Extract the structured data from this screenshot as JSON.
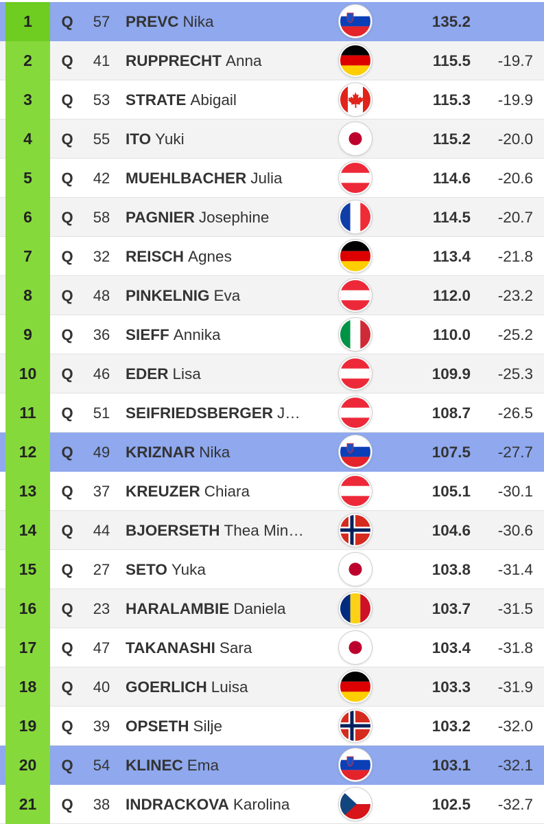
{
  "results": [
    {
      "rank": "1",
      "status": "Q",
      "bib": "57",
      "last": "PREVC",
      "first": "Nika",
      "country": "SLO",
      "score": "135.2",
      "diff": "",
      "highlight": true
    },
    {
      "rank": "2",
      "status": "Q",
      "bib": "41",
      "last": "RUPPRECHT",
      "first": "Anna",
      "country": "GER",
      "score": "115.5",
      "diff": "-19.7",
      "highlight": false
    },
    {
      "rank": "3",
      "status": "Q",
      "bib": "53",
      "last": "STRATE",
      "first": "Abigail",
      "country": "CAN",
      "score": "115.3",
      "diff": "-19.9",
      "highlight": false
    },
    {
      "rank": "4",
      "status": "Q",
      "bib": "55",
      "last": "ITO",
      "first": "Yuki",
      "country": "JPN",
      "score": "115.2",
      "diff": "-20.0",
      "highlight": false
    },
    {
      "rank": "5",
      "status": "Q",
      "bib": "42",
      "last": "MUEHLBACHER",
      "first": "Julia",
      "country": "AUT",
      "score": "114.6",
      "diff": "-20.6",
      "highlight": false
    },
    {
      "rank": "6",
      "status": "Q",
      "bib": "58",
      "last": "PAGNIER",
      "first": "Josephine",
      "country": "FRA",
      "score": "114.5",
      "diff": "-20.7",
      "highlight": false
    },
    {
      "rank": "7",
      "status": "Q",
      "bib": "32",
      "last": "REISCH",
      "first": "Agnes",
      "country": "GER",
      "score": "113.4",
      "diff": "-21.8",
      "highlight": false
    },
    {
      "rank": "8",
      "status": "Q",
      "bib": "48",
      "last": "PINKELNIG",
      "first": "Eva",
      "country": "AUT",
      "score": "112.0",
      "diff": "-23.2",
      "highlight": false
    },
    {
      "rank": "9",
      "status": "Q",
      "bib": "36",
      "last": "SIEFF",
      "first": "Annika",
      "country": "ITA",
      "score": "110.0",
      "diff": "-25.2",
      "highlight": false
    },
    {
      "rank": "10",
      "status": "Q",
      "bib": "46",
      "last": "EDER",
      "first": "Lisa",
      "country": "AUT",
      "score": "109.9",
      "diff": "-25.3",
      "highlight": false
    },
    {
      "rank": "11",
      "status": "Q",
      "bib": "51",
      "last": "SEIFRIEDSBERGER",
      "first": "J…",
      "country": "AUT",
      "score": "108.7",
      "diff": "-26.5",
      "highlight": false
    },
    {
      "rank": "12",
      "status": "Q",
      "bib": "49",
      "last": "KRIZNAR",
      "first": "Nika",
      "country": "SLO",
      "score": "107.5",
      "diff": "-27.7",
      "highlight": true
    },
    {
      "rank": "13",
      "status": "Q",
      "bib": "37",
      "last": "KREUZER",
      "first": "Chiara",
      "country": "AUT",
      "score": "105.1",
      "diff": "-30.1",
      "highlight": false
    },
    {
      "rank": "14",
      "status": "Q",
      "bib": "44",
      "last": "BJOERSETH",
      "first": "Thea Min…",
      "country": "NOR",
      "score": "104.6",
      "diff": "-30.6",
      "highlight": false
    },
    {
      "rank": "15",
      "status": "Q",
      "bib": "27",
      "last": "SETO",
      "first": "Yuka",
      "country": "JPN",
      "score": "103.8",
      "diff": "-31.4",
      "highlight": false
    },
    {
      "rank": "16",
      "status": "Q",
      "bib": "23",
      "last": "HARALAMBIE",
      "first": "Daniela",
      "country": "ROU",
      "score": "103.7",
      "diff": "-31.5",
      "highlight": false
    },
    {
      "rank": "17",
      "status": "Q",
      "bib": "47",
      "last": "TAKANASHI",
      "first": "Sara",
      "country": "JPN",
      "score": "103.4",
      "diff": "-31.8",
      "highlight": false
    },
    {
      "rank": "18",
      "status": "Q",
      "bib": "40",
      "last": "GOERLICH",
      "first": "Luisa",
      "country": "GER",
      "score": "103.3",
      "diff": "-31.9",
      "highlight": false
    },
    {
      "rank": "19",
      "status": "Q",
      "bib": "39",
      "last": "OPSETH",
      "first": "Silje",
      "country": "NOR",
      "score": "103.2",
      "diff": "-32.0",
      "highlight": false
    },
    {
      "rank": "20",
      "status": "Q",
      "bib": "54",
      "last": "KLINEC",
      "first": "Ema",
      "country": "SLO",
      "score": "103.1",
      "diff": "-32.1",
      "highlight": true
    },
    {
      "rank": "21",
      "status": "Q",
      "bib": "38",
      "last": "INDRACKOVA",
      "first": "Karolina",
      "country": "CZE",
      "score": "102.5",
      "diff": "-32.7",
      "highlight": false
    }
  ],
  "colors": {
    "rank_bg": "#86d93a",
    "highlight_row": "#8fa8ee",
    "alt_row": "#f3f3f3"
  }
}
